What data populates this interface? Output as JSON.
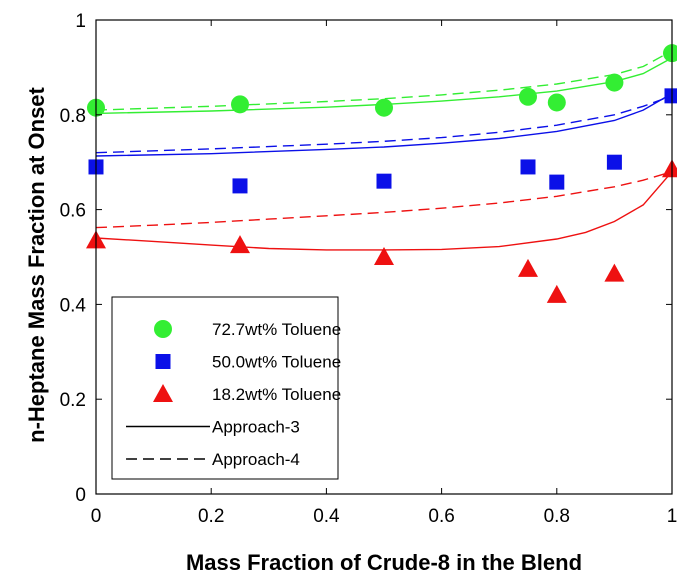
{
  "chart_data": {
    "type": "scatter",
    "title": "",
    "xlabel": "Mass Fraction of Crude-8 in the Blend",
    "ylabel": "n-Heptane Mass Fraction at Onset",
    "xlim": [
      0,
      1
    ],
    "ylim": [
      0,
      1
    ],
    "xticks": [
      "0",
      "0.2",
      "0.4",
      "0.6",
      "0.8",
      "1"
    ],
    "yticks": [
      "0",
      "0.2",
      "0.4",
      "0.6",
      "0.8",
      "1"
    ],
    "grid": false,
    "legend_position": "bottom-left",
    "series": [
      {
        "name": "72.7wt% Toluene",
        "marker": "circle",
        "color": "#33ee33",
        "points": [
          [
            0,
            0.815
          ],
          [
            0.25,
            0.822
          ],
          [
            0.5,
            0.815
          ],
          [
            0.75,
            0.838
          ],
          [
            0.8,
            0.826
          ],
          [
            0.9,
            0.868
          ],
          [
            1.0,
            0.93
          ]
        ]
      },
      {
        "name": "50.0wt% Toluene",
        "marker": "square",
        "color": "#0b10e8",
        "points": [
          [
            0,
            0.69
          ],
          [
            0.25,
            0.65
          ],
          [
            0.5,
            0.66
          ],
          [
            0.75,
            0.69
          ],
          [
            0.8,
            0.658
          ],
          [
            0.9,
            0.7
          ],
          [
            1.0,
            0.84
          ]
        ]
      },
      {
        "name": "18.2wt% Toluene",
        "marker": "triangle",
        "color": "#ee1111",
        "points": [
          [
            0,
            0.535
          ],
          [
            0.25,
            0.525
          ],
          [
            0.5,
            0.5
          ],
          [
            0.75,
            0.475
          ],
          [
            0.8,
            0.42
          ],
          [
            0.9,
            0.465
          ],
          [
            1.0,
            0.685
          ]
        ]
      }
    ],
    "curves": [
      {
        "approach": "Approach-3",
        "dash": "solid",
        "color": "#33ee33",
        "points": [
          [
            0,
            0.803
          ],
          [
            0.2,
            0.808
          ],
          [
            0.4,
            0.816
          ],
          [
            0.5,
            0.822
          ],
          [
            0.6,
            0.829
          ],
          [
            0.7,
            0.838
          ],
          [
            0.8,
            0.85
          ],
          [
            0.9,
            0.87
          ],
          [
            0.95,
            0.887
          ],
          [
            1.0,
            0.92
          ]
        ]
      },
      {
        "approach": "Approach-4",
        "dash": "dashed",
        "color": "#33ee33",
        "points": [
          [
            0,
            0.81
          ],
          [
            0.2,
            0.818
          ],
          [
            0.4,
            0.828
          ],
          [
            0.5,
            0.834
          ],
          [
            0.6,
            0.842
          ],
          [
            0.7,
            0.852
          ],
          [
            0.8,
            0.865
          ],
          [
            0.9,
            0.885
          ],
          [
            0.95,
            0.902
          ],
          [
            1.0,
            0.935
          ]
        ]
      },
      {
        "approach": "Approach-3",
        "dash": "solid",
        "color": "#0b10e8",
        "points": [
          [
            0,
            0.713
          ],
          [
            0.2,
            0.718
          ],
          [
            0.4,
            0.727
          ],
          [
            0.5,
            0.732
          ],
          [
            0.6,
            0.74
          ],
          [
            0.7,
            0.75
          ],
          [
            0.8,
            0.765
          ],
          [
            0.9,
            0.788
          ],
          [
            0.95,
            0.81
          ],
          [
            1.0,
            0.845
          ]
        ]
      },
      {
        "approach": "Approach-4",
        "dash": "dashed",
        "color": "#0b10e8",
        "points": [
          [
            0,
            0.72
          ],
          [
            0.2,
            0.728
          ],
          [
            0.4,
            0.738
          ],
          [
            0.5,
            0.744
          ],
          [
            0.6,
            0.752
          ],
          [
            0.7,
            0.763
          ],
          [
            0.8,
            0.778
          ],
          [
            0.9,
            0.8
          ],
          [
            0.95,
            0.818
          ],
          [
            1.0,
            0.84
          ]
        ]
      },
      {
        "approach": "Approach-3",
        "dash": "solid",
        "color": "#ee1111",
        "points": [
          [
            0,
            0.54
          ],
          [
            0.1,
            0.533
          ],
          [
            0.2,
            0.525
          ],
          [
            0.3,
            0.518
          ],
          [
            0.4,
            0.515
          ],
          [
            0.5,
            0.515
          ],
          [
            0.6,
            0.516
          ],
          [
            0.7,
            0.522
          ],
          [
            0.8,
            0.538
          ],
          [
            0.85,
            0.552
          ],
          [
            0.9,
            0.575
          ],
          [
            0.95,
            0.61
          ],
          [
            1.0,
            0.68
          ]
        ]
      },
      {
        "approach": "Approach-4",
        "dash": "dashed",
        "color": "#ee1111",
        "points": [
          [
            0,
            0.562
          ],
          [
            0.1,
            0.567
          ],
          [
            0.2,
            0.573
          ],
          [
            0.3,
            0.58
          ],
          [
            0.4,
            0.587
          ],
          [
            0.5,
            0.594
          ],
          [
            0.6,
            0.603
          ],
          [
            0.7,
            0.614
          ],
          [
            0.8,
            0.628
          ],
          [
            0.9,
            0.648
          ],
          [
            0.95,
            0.662
          ],
          [
            1.0,
            0.68
          ]
        ]
      }
    ],
    "legend": [
      {
        "label": "72.7wt% Toluene",
        "kind": "circle",
        "color": "#33ee33"
      },
      {
        "label": "50.0wt% Toluene",
        "kind": "square",
        "color": "#0b10e8"
      },
      {
        "label": "18.2wt% Toluene",
        "kind": "triangle",
        "color": "#ee1111"
      },
      {
        "label": "Approach-3",
        "kind": "solid-line",
        "color": "#000000"
      },
      {
        "label": "Approach-4",
        "kind": "dashed-line",
        "color": "#000000"
      }
    ]
  }
}
